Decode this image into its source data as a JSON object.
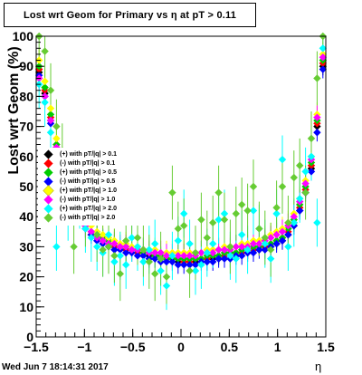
{
  "window": {
    "title": "Lost wrt Geom for Primary vs  η at pT > 0.11",
    "timestamp": "Wed Jun  7 18:14:31 2017"
  },
  "chart_data": {
    "type": "scatter",
    "title": "Lost wrt Geom for Primary vs  η at pT > 0.11",
    "xlabel": "η",
    "ylabel": "Lost wrt Geom (%)",
    "xlim": [
      -1.5,
      1.5
    ],
    "ylim": [
      0,
      100
    ],
    "x_ticks": [
      -1.5,
      -1,
      -0.5,
      0,
      0.5,
      1,
      1.5
    ],
    "x_tick_labels": [
      "−1.5",
      "−1",
      "−0.5",
      "0",
      "0.5",
      "1",
      "1.5"
    ],
    "y_ticks": [
      0,
      10,
      20,
      30,
      40,
      50,
      60,
      70,
      80,
      90,
      100
    ],
    "y_tick_labels": [
      "0",
      "10",
      "20",
      "30",
      "40",
      "50",
      "60",
      "70",
      "80",
      "90",
      "100"
    ],
    "grid": false,
    "legend_position": "left-middle",
    "x": [
      -1.47,
      -1.41,
      -1.35,
      -1.29,
      -1.23,
      -1.17,
      -1.11,
      -1.05,
      -0.99,
      -0.93,
      -0.87,
      -0.81,
      -0.75,
      -0.69,
      -0.63,
      -0.57,
      -0.51,
      -0.45,
      -0.39,
      -0.33,
      -0.27,
      -0.21,
      -0.15,
      -0.09,
      -0.03,
      0.03,
      0.09,
      0.15,
      0.21,
      0.27,
      0.33,
      0.39,
      0.45,
      0.51,
      0.57,
      0.63,
      0.69,
      0.75,
      0.81,
      0.87,
      0.93,
      0.99,
      1.05,
      1.11,
      1.17,
      1.23,
      1.29,
      1.35,
      1.41,
      1.47
    ],
    "series": [
      {
        "name": "(+) with pT/|q| > 0.1",
        "color": "#000000",
        "values": [
          88,
          81,
          72,
          63,
          56,
          48,
          44,
          40,
          37,
          34,
          33,
          32,
          31,
          30,
          30,
          29,
          29,
          28,
          28,
          27,
          27,
          26,
          26,
          26,
          25,
          25,
          25,
          25,
          25,
          26,
          26,
          26,
          27,
          27,
          27,
          28,
          28,
          29,
          29,
          30,
          30,
          31,
          32,
          34,
          37,
          42,
          48,
          56,
          70,
          90
        ],
        "err": [
          3,
          3,
          3,
          3,
          2,
          2,
          2,
          2,
          2,
          2,
          2,
          2,
          2,
          2,
          2,
          2,
          2,
          2,
          2,
          2,
          2,
          2,
          2,
          2,
          2,
          2,
          2,
          2,
          2,
          2,
          2,
          2,
          2,
          2,
          2,
          2,
          2,
          2,
          2,
          2,
          2,
          2,
          2,
          2,
          2,
          2,
          2,
          3,
          3,
          3
        ]
      },
      {
        "name": "(-) with pT/|q| > 0.1",
        "color": "#ff0000",
        "values": [
          89,
          82,
          73,
          64,
          56,
          49,
          45,
          41,
          38,
          35,
          33,
          32,
          31,
          30,
          30,
          29,
          29,
          28,
          28,
          28,
          27,
          27,
          26,
          26,
          26,
          25,
          25,
          26,
          26,
          26,
          27,
          27,
          27,
          28,
          28,
          28,
          29,
          29,
          30,
          30,
          31,
          32,
          33,
          35,
          38,
          43,
          49,
          57,
          71,
          91
        ],
        "err": [
          3,
          3,
          3,
          3,
          2,
          2,
          2,
          2,
          2,
          2,
          2,
          2,
          2,
          2,
          2,
          2,
          2,
          2,
          2,
          2,
          2,
          2,
          2,
          2,
          2,
          2,
          2,
          2,
          2,
          2,
          2,
          2,
          2,
          2,
          2,
          2,
          2,
          2,
          2,
          2,
          2,
          2,
          2,
          2,
          2,
          2,
          2,
          3,
          3,
          3
        ]
      },
      {
        "name": "(+) with pT/|q| > 0.5",
        "color": "#00cc00",
        "values": [
          90,
          83,
          74,
          64,
          57,
          50,
          45,
          41,
          38,
          35,
          34,
          33,
          32,
          31,
          30,
          30,
          29,
          29,
          28,
          28,
          27,
          27,
          26,
          26,
          26,
          26,
          26,
          26,
          26,
          27,
          27,
          27,
          28,
          28,
          28,
          29,
          29,
          30,
          30,
          31,
          31,
          32,
          33,
          36,
          39,
          44,
          50,
          58,
          72,
          92
        ],
        "err": [
          3,
          3,
          3,
          3,
          3,
          3,
          3,
          3,
          3,
          3,
          3,
          3,
          3,
          3,
          3,
          3,
          3,
          3,
          3,
          3,
          3,
          3,
          3,
          3,
          3,
          3,
          3,
          3,
          3,
          3,
          3,
          3,
          3,
          3,
          3,
          3,
          3,
          3,
          3,
          3,
          3,
          3,
          3,
          3,
          3,
          3,
          3,
          3,
          3,
          3
        ]
      },
      {
        "name": "(-) with pT/|q| > 0.5",
        "color": "#0000ff",
        "values": [
          87,
          80,
          71,
          62,
          55,
          48,
          43,
          39,
          36,
          34,
          32,
          31,
          30,
          29,
          29,
          28,
          28,
          27,
          27,
          26,
          26,
          25,
          25,
          25,
          24,
          24,
          24,
          24,
          25,
          25,
          25,
          26,
          26,
          26,
          27,
          27,
          28,
          28,
          29,
          29,
          30,
          31,
          32,
          34,
          37,
          42,
          48,
          55,
          68,
          89
        ],
        "err": [
          3,
          3,
          3,
          3,
          3,
          3,
          3,
          3,
          3,
          3,
          3,
          3,
          3,
          3,
          3,
          3,
          3,
          3,
          3,
          3,
          3,
          3,
          3,
          3,
          3,
          3,
          3,
          3,
          3,
          3,
          3,
          3,
          3,
          3,
          3,
          3,
          3,
          3,
          3,
          3,
          3,
          3,
          3,
          3,
          3,
          3,
          3,
          3,
          3,
          3
        ]
      },
      {
        "name": "(+) with pT/|q| > 1.0",
        "color": "#ffff00",
        "values": [
          92,
          85,
          76,
          66,
          59,
          52,
          47,
          43,
          40,
          37,
          35,
          34,
          33,
          32,
          31,
          31,
          30,
          30,
          29,
          29,
          29,
          28,
          28,
          28,
          28,
          28,
          28,
          28,
          28,
          29,
          29,
          29,
          30,
          30,
          30,
          31,
          31,
          32,
          32,
          33,
          34,
          35,
          36,
          38,
          41,
          46,
          52,
          60,
          74,
          94
        ],
        "err": [
          4,
          4,
          4,
          4,
          4,
          4,
          4,
          4,
          4,
          4,
          4,
          4,
          4,
          4,
          4,
          4,
          4,
          4,
          4,
          4,
          4,
          4,
          4,
          4,
          4,
          4,
          4,
          4,
          4,
          4,
          4,
          4,
          4,
          4,
          4,
          4,
          4,
          4,
          4,
          4,
          4,
          4,
          4,
          4,
          4,
          4,
          4,
          4,
          4,
          4
        ]
      },
      {
        "name": "(-) with pT/|q| > 1.0",
        "color": "#ff00ff",
        "values": [
          86,
          80,
          72,
          63,
          56,
          49,
          44,
          40,
          37,
          35,
          33,
          32,
          31,
          31,
          30,
          30,
          29,
          29,
          29,
          28,
          28,
          28,
          27,
          27,
          27,
          27,
          27,
          27,
          28,
          28,
          28,
          29,
          29,
          29,
          30,
          30,
          30,
          31,
          31,
          32,
          33,
          34,
          35,
          37,
          40,
          45,
          51,
          59,
          73,
          93
        ],
        "err": [
          4,
          4,
          4,
          4,
          4,
          4,
          4,
          4,
          4,
          4,
          4,
          4,
          4,
          4,
          4,
          4,
          4,
          4,
          4,
          4,
          4,
          4,
          4,
          4,
          4,
          4,
          4,
          4,
          4,
          4,
          4,
          4,
          4,
          4,
          4,
          4,
          4,
          4,
          4,
          4,
          4,
          4,
          4,
          4,
          4,
          4,
          4,
          4,
          4,
          4
        ]
      },
      {
        "name": "(+) with pT/|q| > 2.0",
        "color": "#00ffff",
        "values": [
          84,
          78,
          68,
          30,
          50,
          40,
          45,
          44,
          36,
          33,
          30,
          28,
          34,
          25,
          27,
          24,
          33,
          30,
          25,
          29,
          31,
          22,
          17,
          27,
          32,
          41,
          31,
          22,
          24,
          28,
          31,
          39,
          41,
          27,
          26,
          34,
          29,
          42,
          36,
          31,
          26,
          41,
          59,
          30,
          38,
          46,
          55,
          60,
          38,
          96
        ],
        "err": [
          8,
          8,
          8,
          8,
          8,
          8,
          8,
          8,
          8,
          8,
          8,
          8,
          8,
          8,
          8,
          8,
          8,
          8,
          8,
          8,
          8,
          8,
          8,
          8,
          8,
          8,
          8,
          8,
          8,
          8,
          8,
          8,
          8,
          8,
          8,
          8,
          8,
          8,
          8,
          8,
          8,
          8,
          8,
          8,
          8,
          8,
          8,
          8,
          8,
          8
        ]
      },
      {
        "name": "(-) with pT/|q| > 2.0",
        "color": "#66cc33",
        "values": [
          100,
          95,
          82,
          70,
          62,
          53,
          30,
          48,
          39,
          43,
          34,
          29,
          30,
          27,
          21,
          32,
          40,
          33,
          29,
          25,
          21,
          26,
          20,
          48,
          36,
          37,
          22,
          28,
          39,
          33,
          38,
          48,
          39,
          30,
          41,
          44,
          42,
          50,
          36,
          33,
          29,
          43,
          50,
          38,
          53,
          57,
          48,
          66,
          86,
          100
        ],
        "err": [
          9,
          9,
          9,
          9,
          9,
          9,
          9,
          9,
          9,
          9,
          9,
          9,
          9,
          9,
          9,
          9,
          9,
          9,
          9,
          9,
          9,
          9,
          9,
          9,
          9,
          9,
          9,
          9,
          9,
          9,
          9,
          9,
          9,
          9,
          9,
          9,
          9,
          9,
          9,
          9,
          9,
          9,
          9,
          9,
          9,
          9,
          9,
          9,
          9,
          9
        ]
      }
    ]
  }
}
